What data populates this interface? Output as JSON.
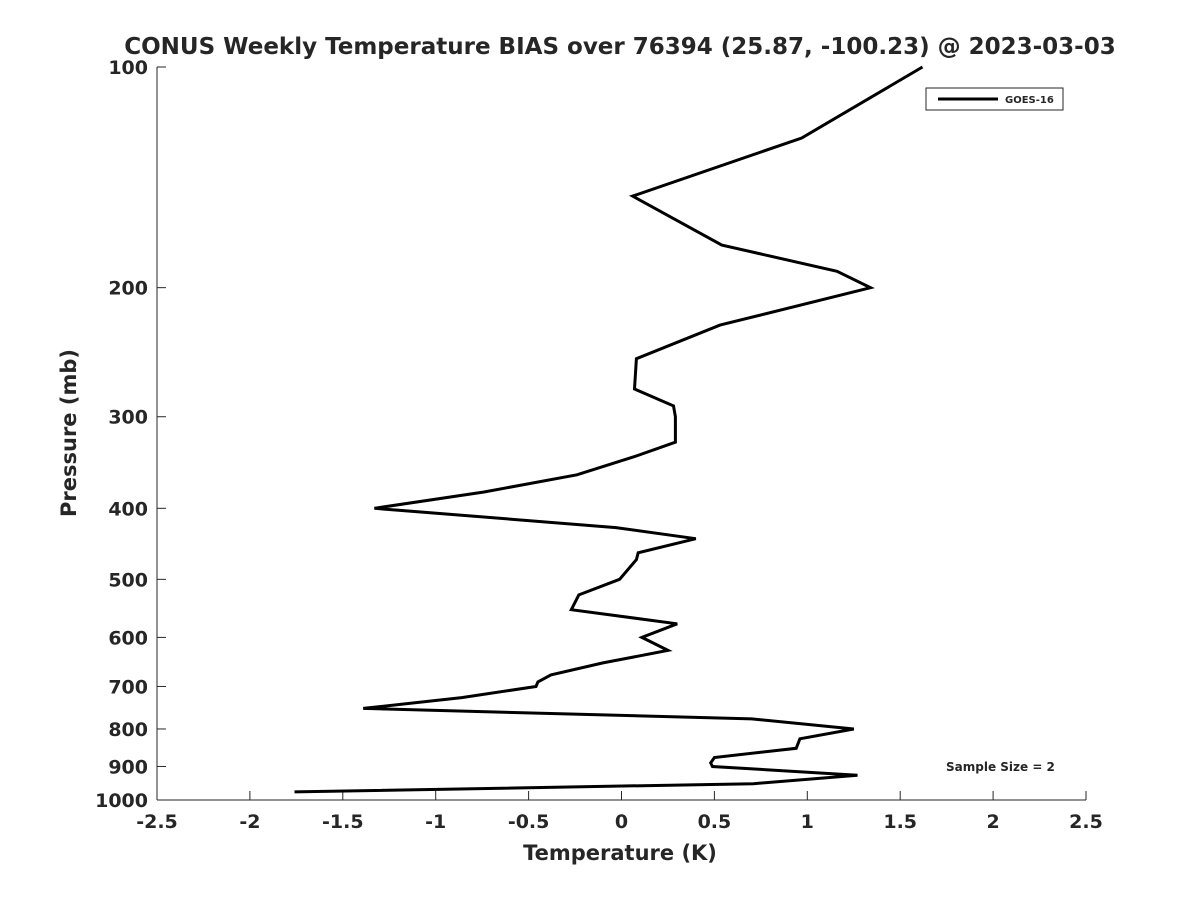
{
  "chart_data": {
    "type": "line",
    "title": "CONUS Weekly Temperature BIAS over 76394 (25.87, -100.23) @ 2023-03-03",
    "xlabel": "Temperature (K)",
    "ylabel": "Pressure (mb)",
    "xlim": [
      -2.5,
      2.5
    ],
    "ylim": [
      1000,
      100
    ],
    "y_scale": "log",
    "y_reversed": true,
    "grid": false,
    "legend_position": "top-right",
    "x_ticks": [
      -2.5,
      -2,
      -1.5,
      -1,
      -0.5,
      0,
      0.5,
      1,
      1.5,
      2,
      2.5
    ],
    "x_tick_labels": [
      "-2.5",
      "-2",
      "-1.5",
      "-1",
      "-0.5",
      "0",
      "0.5",
      "1",
      "1.5",
      "2",
      "2.5"
    ],
    "y_ticks": [
      100,
      200,
      300,
      400,
      500,
      600,
      700,
      800,
      900,
      1000
    ],
    "y_tick_labels": [
      "100",
      "200",
      "300",
      "400",
      "500",
      "600",
      "700",
      "800",
      "900",
      "1000"
    ],
    "series": [
      {
        "name": "GOES-16",
        "color": "#000000",
        "points": [
          [
            1.62,
            100
          ],
          [
            0.97,
            125
          ],
          [
            0.06,
            150
          ],
          [
            0.54,
            175
          ],
          [
            1.16,
            190
          ],
          [
            1.34,
            200
          ],
          [
            0.53,
            225
          ],
          [
            0.08,
            250
          ],
          [
            0.07,
            275
          ],
          [
            0.28,
            290
          ],
          [
            0.29,
            300
          ],
          [
            0.29,
            325
          ],
          [
            0.07,
            340
          ],
          [
            -0.24,
            360
          ],
          [
            -0.74,
            380
          ],
          [
            -1.33,
            400
          ],
          [
            -0.03,
            425
          ],
          [
            0.4,
            440
          ],
          [
            0.09,
            460
          ],
          [
            0.08,
            470
          ],
          [
            -0.01,
            500
          ],
          [
            -0.23,
            525
          ],
          [
            -0.27,
            550
          ],
          [
            0.3,
            575
          ],
          [
            0.11,
            600
          ],
          [
            0.25,
            625
          ],
          [
            -0.1,
            650
          ],
          [
            -0.38,
            675
          ],
          [
            -0.45,
            690
          ],
          [
            -0.46,
            700
          ],
          [
            -0.86,
            725
          ],
          [
            -1.39,
            750
          ],
          [
            0.7,
            775
          ],
          [
            1.25,
            800
          ],
          [
            0.96,
            825
          ],
          [
            0.94,
            850
          ],
          [
            0.5,
            875
          ],
          [
            0.48,
            890
          ],
          [
            0.49,
            900
          ],
          [
            1.27,
            925
          ],
          [
            0.71,
            950
          ],
          [
            -1.76,
            975
          ]
        ]
      }
    ],
    "legend": [
      {
        "label": "GOES-16",
        "color": "#000000"
      }
    ],
    "annotations": [
      {
        "text": "Sample Size = 2"
      }
    ]
  }
}
